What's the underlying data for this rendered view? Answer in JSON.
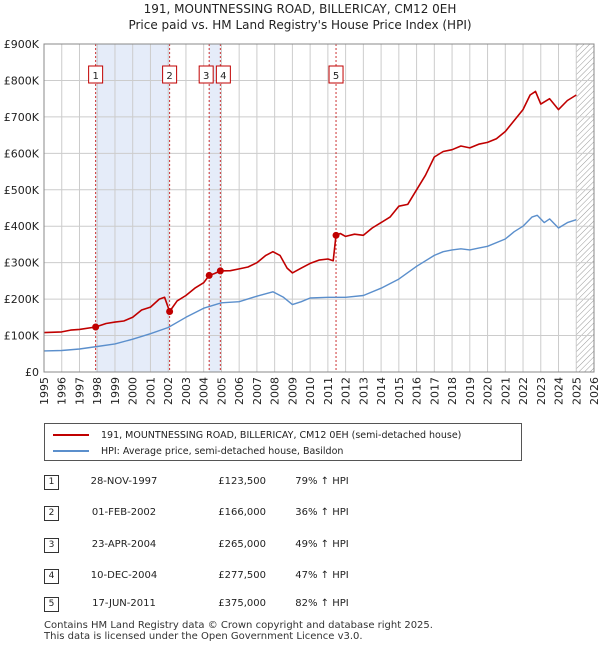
{
  "chart_data": {
    "type": "line",
    "title": "191, MOUNTNESSING ROAD, BILLERICAY, CM12 0EH",
    "subtitle": "Price paid vs. HM Land Registry's House Price Index (HPI)",
    "xlim": [
      1995,
      2026
    ],
    "ylim": [
      0,
      900000
    ],
    "x_ticks": [
      "1995",
      "1996",
      "1997",
      "1998",
      "1999",
      "2000",
      "2001",
      "2002",
      "2003",
      "2004",
      "2005",
      "2006",
      "2007",
      "2008",
      "2009",
      "2010",
      "2011",
      "2012",
      "2013",
      "2014",
      "2015",
      "2016",
      "2017",
      "2018",
      "2019",
      "2020",
      "2021",
      "2022",
      "2023",
      "2024",
      "2025",
      "2026"
    ],
    "y_ticks": [
      {
        "value": 0,
        "label": "£0"
      },
      {
        "value": 100000,
        "label": "£100K"
      },
      {
        "value": 200000,
        "label": "£200K"
      },
      {
        "value": 300000,
        "label": "£300K"
      },
      {
        "value": 400000,
        "label": "£400K"
      },
      {
        "value": 500000,
        "label": "£500K"
      },
      {
        "value": 600000,
        "label": "£600K"
      },
      {
        "value": 700000,
        "label": "£700K"
      },
      {
        "value": 800000,
        "label": "£800K"
      },
      {
        "value": 900000,
        "label": "£900K"
      }
    ],
    "series": [
      {
        "name": "191, MOUNTNESSING ROAD, BILLERICAY, CM12 0EH (semi-detached house)",
        "color": "#c00000",
        "points": [
          [
            1995.0,
            108000
          ],
          [
            1996.0,
            110000
          ],
          [
            1996.5,
            115000
          ],
          [
            1997.0,
            117000
          ],
          [
            1997.9,
            123500
          ],
          [
            1998.5,
            133000
          ],
          [
            1999.0,
            137000
          ],
          [
            1999.5,
            140000
          ],
          [
            2000.0,
            150000
          ],
          [
            2000.5,
            170000
          ],
          [
            2001.0,
            178000
          ],
          [
            2001.5,
            200000
          ],
          [
            2001.8,
            205000
          ],
          [
            2002.08,
            166000
          ],
          [
            2002.5,
            195000
          ],
          [
            2003.0,
            210000
          ],
          [
            2003.5,
            230000
          ],
          [
            2004.0,
            245000
          ],
          [
            2004.31,
            265000
          ],
          [
            2004.6,
            270000
          ],
          [
            2004.94,
            277500
          ],
          [
            2005.5,
            278000
          ],
          [
            2006.0,
            283000
          ],
          [
            2006.5,
            288000
          ],
          [
            2007.0,
            300000
          ],
          [
            2007.5,
            320000
          ],
          [
            2007.9,
            330000
          ],
          [
            2008.3,
            320000
          ],
          [
            2008.7,
            285000
          ],
          [
            2009.0,
            272000
          ],
          [
            2009.5,
            285000
          ],
          [
            2010.0,
            298000
          ],
          [
            2010.5,
            307000
          ],
          [
            2011.0,
            310000
          ],
          [
            2011.3,
            305000
          ],
          [
            2011.46,
            375000
          ],
          [
            2011.7,
            380000
          ],
          [
            2012.0,
            372000
          ],
          [
            2012.5,
            378000
          ],
          [
            2013.0,
            375000
          ],
          [
            2013.5,
            395000
          ],
          [
            2014.0,
            410000
          ],
          [
            2014.5,
            425000
          ],
          [
            2015.0,
            455000
          ],
          [
            2015.5,
            460000
          ],
          [
            2016.0,
            500000
          ],
          [
            2016.5,
            540000
          ],
          [
            2017.0,
            590000
          ],
          [
            2017.5,
            605000
          ],
          [
            2018.0,
            610000
          ],
          [
            2018.5,
            620000
          ],
          [
            2019.0,
            615000
          ],
          [
            2019.5,
            625000
          ],
          [
            2020.0,
            630000
          ],
          [
            2020.5,
            640000
          ],
          [
            2021.0,
            660000
          ],
          [
            2021.5,
            690000
          ],
          [
            2022.0,
            720000
          ],
          [
            2022.4,
            760000
          ],
          [
            2022.7,
            770000
          ],
          [
            2023.0,
            735000
          ],
          [
            2023.5,
            750000
          ],
          [
            2024.0,
            720000
          ],
          [
            2024.5,
            745000
          ],
          [
            2025.0,
            760000
          ]
        ]
      },
      {
        "name": "HPI: Average price, semi-detached house, Basildon",
        "color": "#5b8fcc",
        "points": [
          [
            1995.0,
            58000
          ],
          [
            1996.0,
            59000
          ],
          [
            1997.0,
            63000
          ],
          [
            1998.0,
            70000
          ],
          [
            1999.0,
            77000
          ],
          [
            2000.0,
            90000
          ],
          [
            2001.0,
            105000
          ],
          [
            2002.0,
            122000
          ],
          [
            2003.0,
            150000
          ],
          [
            2004.0,
            175000
          ],
          [
            2005.0,
            190000
          ],
          [
            2006.0,
            193000
          ],
          [
            2007.0,
            208000
          ],
          [
            2007.9,
            220000
          ],
          [
            2008.5,
            205000
          ],
          [
            2009.0,
            185000
          ],
          [
            2009.5,
            193000
          ],
          [
            2010.0,
            203000
          ],
          [
            2011.0,
            205000
          ],
          [
            2012.0,
            205000
          ],
          [
            2013.0,
            210000
          ],
          [
            2014.0,
            230000
          ],
          [
            2015.0,
            255000
          ],
          [
            2016.0,
            290000
          ],
          [
            2017.0,
            320000
          ],
          [
            2017.5,
            330000
          ],
          [
            2018.0,
            335000
          ],
          [
            2018.5,
            338000
          ],
          [
            2019.0,
            335000
          ],
          [
            2019.5,
            340000
          ],
          [
            2020.0,
            345000
          ],
          [
            2021.0,
            365000
          ],
          [
            2021.5,
            385000
          ],
          [
            2022.0,
            400000
          ],
          [
            2022.5,
            425000
          ],
          [
            2022.8,
            430000
          ],
          [
            2023.2,
            410000
          ],
          [
            2023.5,
            420000
          ],
          [
            2024.0,
            395000
          ],
          [
            2024.5,
            410000
          ],
          [
            2025.0,
            418000
          ]
        ]
      }
    ],
    "sale_markers": [
      {
        "label": "1",
        "year": 1997.91,
        "value": 123500
      },
      {
        "label": "2",
        "year": 2002.08,
        "value": 166000
      },
      {
        "label": "3",
        "year": 2004.31,
        "value": 265000
      },
      {
        "label": "4",
        "year": 2004.94,
        "value": 277500
      },
      {
        "label": "5",
        "year": 2011.46,
        "value": 375000
      }
    ],
    "future_shade_start": 2025.0
  },
  "legend": {
    "property": "191, MOUNTNESSING ROAD, BILLERICAY, CM12 0EH (semi-detached house)",
    "hpi": "HPI: Average price, semi-detached house, Basildon"
  },
  "sales": [
    {
      "num": "1",
      "date": "28-NOV-1997",
      "price": "£123,500",
      "hpi": "79% ↑ HPI"
    },
    {
      "num": "2",
      "date": "01-FEB-2002",
      "price": "£166,000",
      "hpi": "36% ↑ HPI"
    },
    {
      "num": "3",
      "date": "23-APR-2004",
      "price": "£265,000",
      "hpi": "49% ↑ HPI"
    },
    {
      "num": "4",
      "date": "10-DEC-2004",
      "price": "£277,500",
      "hpi": "47% ↑ HPI"
    },
    {
      "num": "5",
      "date": "17-JUN-2011",
      "price": "£375,000",
      "hpi": "82% ↑ HPI"
    }
  ],
  "footer": {
    "line1": "Contains HM Land Registry data © Crown copyright and database right 2025.",
    "line2": "This data is licensed under the Open Government Licence v3.0."
  },
  "colors": {
    "property": "#c00000",
    "hpi": "#5b8fcc",
    "band": "#dce6f7",
    "grid": "#cccccc"
  }
}
